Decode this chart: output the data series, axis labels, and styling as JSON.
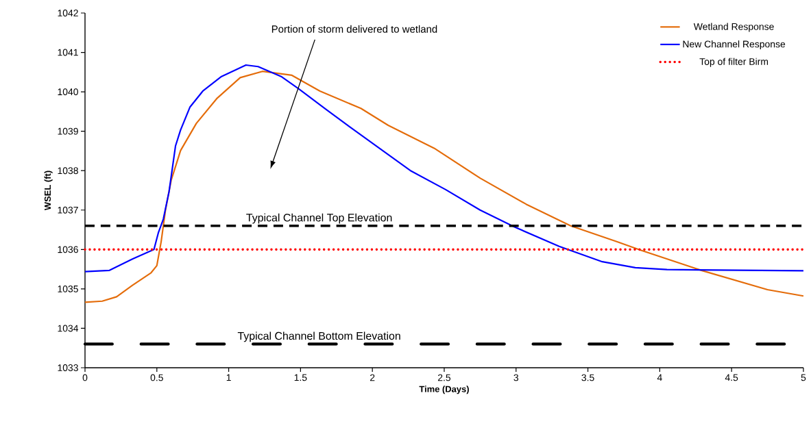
{
  "chart_data": {
    "type": "line",
    "xlabel": "Time (Days)",
    "ylabel": "WSEL (ft)",
    "xlim": [
      0,
      5
    ],
    "ylim": [
      1033,
      1042
    ],
    "xticks": [
      0,
      0.5,
      1,
      1.5,
      2,
      2.5,
      3,
      3.5,
      4,
      4.5,
      5
    ],
    "yticks": [
      1033,
      1034,
      1035,
      1036,
      1037,
      1038,
      1039,
      1040,
      1041,
      1042
    ],
    "grid": false,
    "legend": "top right",
    "marker": "none",
    "series": [
      {
        "name": "Wetland Response",
        "color": "#e46c0a",
        "line_style": "solid",
        "x": [
          0,
          0.12,
          0.22,
          0.33,
          0.46,
          0.5,
          0.53,
          0.56,
          0.6,
          0.665,
          0.775,
          0.92,
          1.08,
          1.235,
          1.44,
          1.635,
          1.92,
          2.11,
          2.43,
          2.75,
          3.07,
          3.38,
          3.7,
          3.87,
          4.29,
          4.75,
          5
        ],
        "values": [
          1034.66,
          1034.69,
          1034.8,
          1035.09,
          1035.41,
          1035.59,
          1036.2,
          1037.0,
          1037.76,
          1038.51,
          1039.2,
          1039.84,
          1040.36,
          1040.52,
          1040.42,
          1040.02,
          1039.58,
          1039.15,
          1038.57,
          1037.81,
          1037.15,
          1036.6,
          1036.2,
          1035.98,
          1035.47,
          1034.98,
          1034.82
        ]
      },
      {
        "name": "New Channel Response",
        "color": "#0000ff",
        "line_style": "solid",
        "x": [
          0,
          0.17,
          0.33,
          0.48,
          0.51,
          0.545,
          0.585,
          0.63,
          0.665,
          0.73,
          0.82,
          0.95,
          1.12,
          1.205,
          1.365,
          1.49,
          1.68,
          1.84,
          2.03,
          2.27,
          2.51,
          2.75,
          2.99,
          3.3,
          3.6,
          3.83,
          4.05,
          5
        ],
        "values": [
          1035.44,
          1035.47,
          1035.76,
          1036.0,
          1036.42,
          1036.77,
          1037.47,
          1038.63,
          1039.03,
          1039.61,
          1040.02,
          1040.39,
          1040.68,
          1040.64,
          1040.39,
          1040.07,
          1039.55,
          1039.12,
          1038.62,
          1037.99,
          1037.52,
          1037.0,
          1036.57,
          1036.08,
          1035.69,
          1035.54,
          1035.49,
          1035.46
        ]
      },
      {
        "name": "Top of filter Birm",
        "color": "#ff0000",
        "line_style": "dotted",
        "x": [
          0,
          5
        ],
        "values": [
          1036,
          1036
        ]
      }
    ],
    "ref_lines": [
      {
        "axis": "y",
        "value": 1036.6,
        "label": "Typical Channel Top Elevation",
        "color": "#000000",
        "line_style": "dashed"
      },
      {
        "axis": "y",
        "value": 1033.6,
        "label": "Typical Channel Bottom Elevation",
        "color": "#000000",
        "line_style": "dashdotdotted"
      }
    ],
    "annotations": [
      "Portion of storm delivered to wetland"
    ]
  }
}
